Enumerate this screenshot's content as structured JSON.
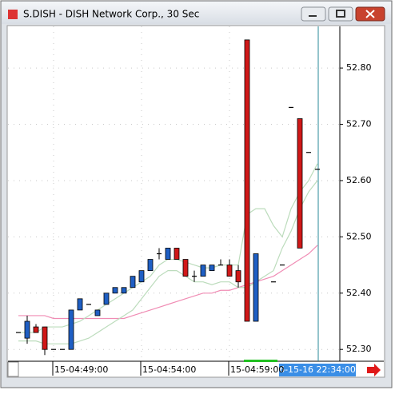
{
  "chart_data": {
    "type": "candlestick",
    "title": "S.DISH - DISH Network Corp., 30 Sec",
    "cursor_label": "6-15-16 22:34:00",
    "categories": [
      null,
      null,
      null,
      null,
      "15-04:49:00",
      null,
      null,
      null,
      null,
      null,
      null,
      null,
      null,
      null,
      "15-04:54:00",
      null,
      null,
      null,
      null,
      null,
      null,
      null,
      null,
      null,
      "15-04:59:00",
      null,
      null,
      null,
      null,
      null,
      null,
      null,
      null,
      null,
      null
    ],
    "open": [
      52.33,
      52.32,
      52.34,
      52.34,
      52.3,
      52.3,
      52.3,
      52.37,
      52.38,
      52.36,
      52.38,
      52.4,
      52.4,
      52.41,
      52.42,
      52.44,
      52.47,
      52.46,
      52.48,
      52.46,
      52.43,
      52.43,
      52.44,
      52.45,
      52.45,
      52.44,
      52.85,
      52.35,
      null,
      52.42,
      52.45,
      52.73,
      52.71,
      52.65,
      52.62
    ],
    "high": [
      52.33,
      52.36,
      52.345,
      52.34,
      52.3,
      52.3,
      52.37,
      52.39,
      52.38,
      52.37,
      52.4,
      52.41,
      52.41,
      52.43,
      52.44,
      52.46,
      52.48,
      52.48,
      52.48,
      52.46,
      52.44,
      52.45,
      52.45,
      52.46,
      52.46,
      52.45,
      52.85,
      52.47,
      null,
      52.42,
      52.45,
      52.73,
      52.71,
      52.65,
      52.62
    ],
    "low": [
      52.33,
      52.31,
      52.33,
      52.29,
      52.3,
      52.3,
      52.3,
      52.37,
      52.38,
      52.36,
      52.38,
      52.4,
      52.4,
      52.41,
      52.42,
      52.44,
      52.46,
      52.46,
      52.46,
      52.43,
      52.42,
      52.43,
      52.44,
      52.45,
      52.43,
      52.41,
      52.35,
      52.35,
      null,
      52.42,
      52.45,
      52.73,
      52.48,
      52.65,
      52.62
    ],
    "close": [
      52.33,
      52.35,
      52.33,
      52.3,
      52.3,
      52.3,
      52.37,
      52.39,
      52.38,
      52.37,
      52.4,
      52.41,
      52.41,
      52.43,
      52.44,
      52.46,
      52.47,
      52.48,
      52.46,
      52.43,
      52.43,
      52.45,
      52.45,
      52.45,
      52.43,
      52.42,
      52.35,
      52.47,
      null,
      52.42,
      52.45,
      52.73,
      52.48,
      52.65,
      52.62
    ],
    "up_color": "#1f5fc4",
    "down_color": "#d01818",
    "lines": [
      {
        "color": "#f08cb4",
        "values": [
          52.36,
          52.36,
          52.36,
          52.36,
          52.355,
          52.355,
          52.355,
          52.355,
          52.355,
          52.355,
          52.355,
          52.355,
          52.355,
          52.36,
          52.365,
          52.37,
          52.375,
          52.38,
          52.385,
          52.39,
          52.395,
          52.4,
          52.4,
          52.405,
          52.405,
          52.41,
          52.415,
          52.42,
          52.425,
          52.43,
          52.44,
          52.45,
          52.46,
          52.47,
          52.485
        ]
      },
      {
        "color": "#bcdcbc",
        "values": [
          52.33,
          52.33,
          52.33,
          52.34,
          52.34,
          52.34,
          52.345,
          52.35,
          52.36,
          52.37,
          52.38,
          52.39,
          52.4,
          52.41,
          52.42,
          52.43,
          52.45,
          52.46,
          52.46,
          52.455,
          52.45,
          52.445,
          52.445,
          52.45,
          52.45,
          52.45,
          52.54,
          52.55,
          52.55,
          52.52,
          52.5,
          52.55,
          52.58,
          52.6,
          52.63
        ]
      },
      {
        "color": "#bcdcbc",
        "values": [
          52.315,
          52.315,
          52.315,
          52.31,
          52.31,
          52.31,
          52.31,
          52.315,
          52.32,
          52.33,
          52.34,
          52.35,
          52.36,
          52.37,
          52.39,
          52.41,
          52.43,
          52.44,
          52.44,
          52.43,
          52.42,
          52.42,
          52.415,
          52.42,
          52.42,
          52.41,
          52.41,
          52.42,
          52.43,
          52.44,
          52.48,
          52.51,
          52.55,
          52.58,
          52.6
        ]
      }
    ],
    "ylim": [
      52.279,
      52.874
    ],
    "yticks": [
      {
        "value": 52.3,
        "label": "52.30"
      },
      {
        "value": 52.4,
        "label": "52.40"
      },
      {
        "value": 52.5,
        "label": "52.50"
      },
      {
        "value": 52.6,
        "label": "52.60"
      },
      {
        "value": 52.7,
        "label": "52.70"
      },
      {
        "value": 52.8,
        "label": "52.80"
      }
    ],
    "grid": true
  }
}
